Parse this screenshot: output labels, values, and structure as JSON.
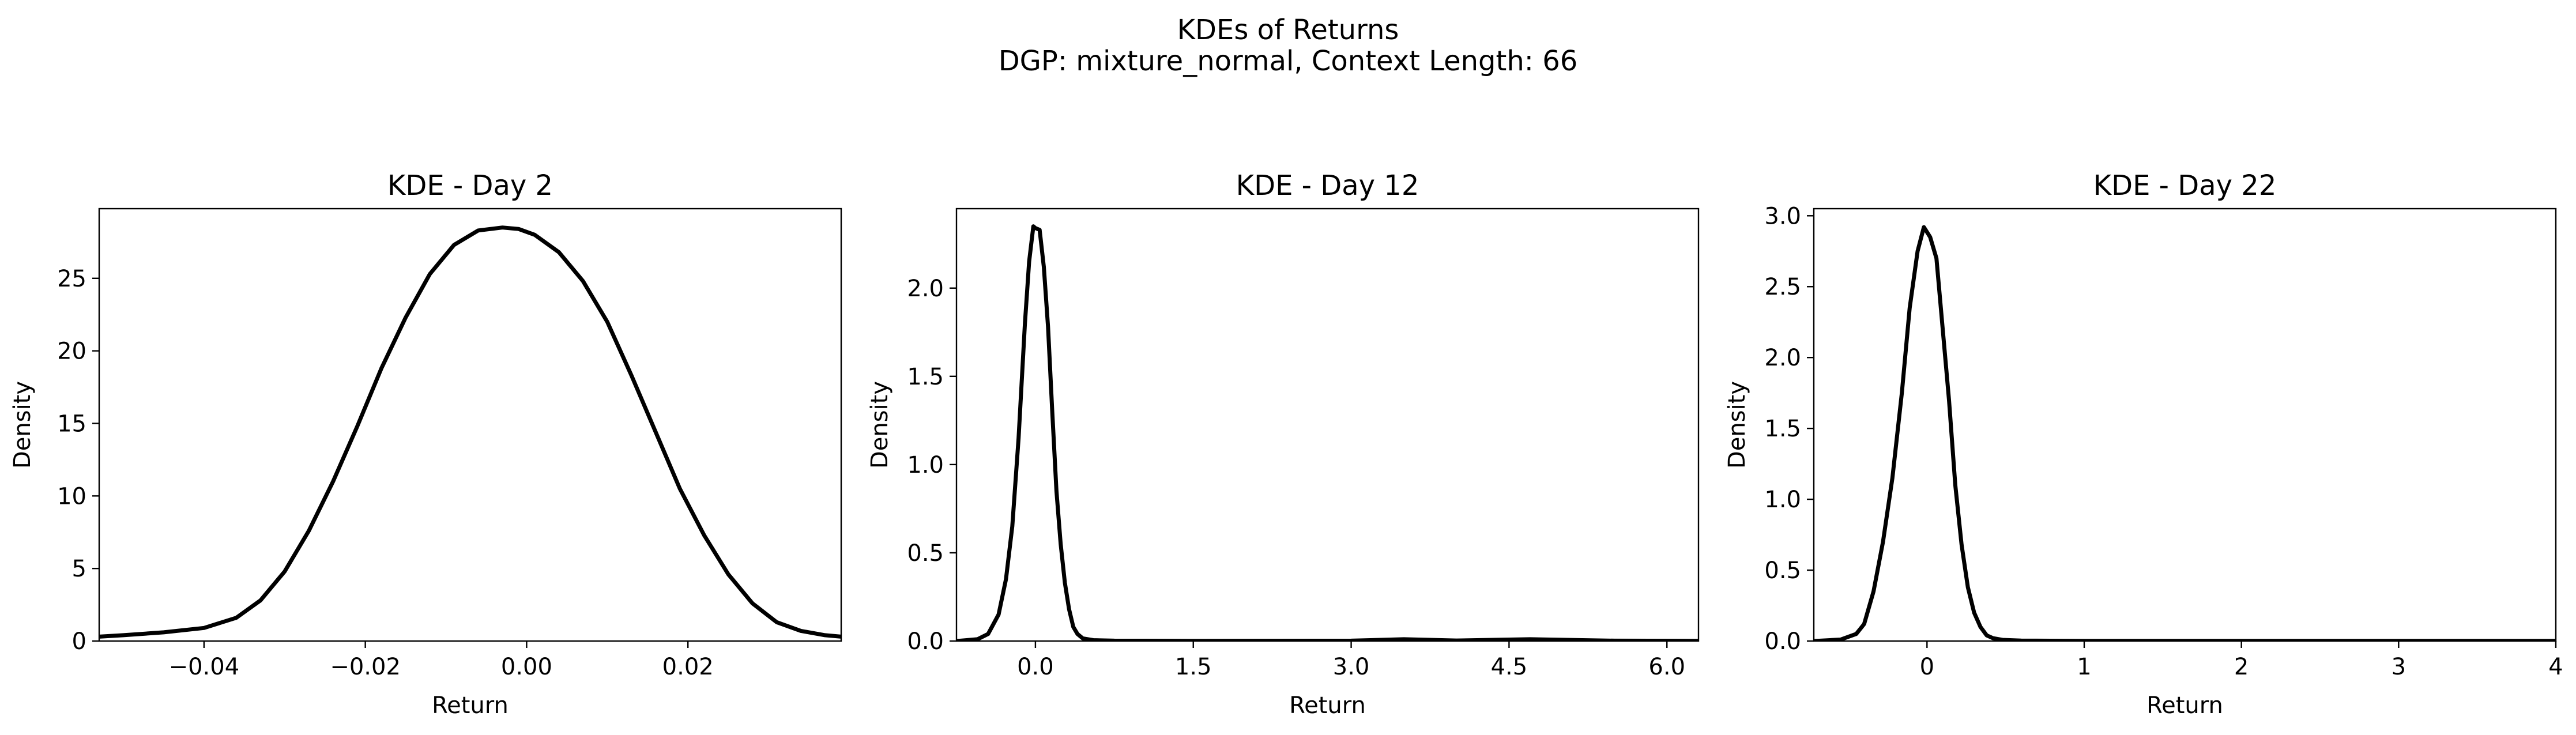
{
  "figure": {
    "title": "KDEs of Returns",
    "subtitle": "DGP: mixture_normal, Context Length: 66"
  },
  "chart_data": [
    {
      "type": "line",
      "title": "KDE - Day 2",
      "xlabel": "Return",
      "ylabel": "Density",
      "xlim": [
        -0.053,
        0.039
      ],
      "ylim": [
        0,
        29.8
      ],
      "xticks": [
        -0.04,
        -0.02,
        0.0,
        0.02
      ],
      "xtick_labels": [
        "−0.04",
        "−0.02",
        "0.00",
        "0.02"
      ],
      "yticks": [
        0,
        5,
        10,
        15,
        20,
        25
      ],
      "ytick_labels": [
        "0",
        "5",
        "10",
        "15",
        "20",
        "25"
      ],
      "grid": false,
      "series": [
        {
          "color": "#000000",
          "x": [
            -0.053,
            -0.05,
            -0.045,
            -0.04,
            -0.036,
            -0.033,
            -0.03,
            -0.027,
            -0.024,
            -0.021,
            -0.018,
            -0.015,
            -0.012,
            -0.009,
            -0.006,
            -0.003,
            -0.001,
            0.001,
            0.004,
            0.007,
            0.01,
            0.013,
            0.016,
            0.019,
            0.022,
            0.025,
            0.028,
            0.031,
            0.034,
            0.037,
            0.039
          ],
          "y": [
            0.3,
            0.4,
            0.6,
            0.9,
            1.6,
            2.8,
            4.8,
            7.6,
            11.0,
            14.8,
            18.8,
            22.3,
            25.3,
            27.3,
            28.3,
            28.5,
            28.4,
            28.0,
            26.8,
            24.8,
            22.0,
            18.3,
            14.4,
            10.5,
            7.3,
            4.6,
            2.6,
            1.3,
            0.7,
            0.4,
            0.3
          ]
        }
      ]
    },
    {
      "type": "line",
      "title": "KDE - Day 12",
      "xlabel": "Return",
      "ylabel": "Density",
      "xlim": [
        -0.75,
        6.3
      ],
      "ylim": [
        0,
        2.45
      ],
      "xticks": [
        0.0,
        1.5,
        3.0,
        4.5,
        6.0
      ],
      "xtick_labels": [
        "0.0",
        "1.5",
        "3.0",
        "4.5",
        "6.0"
      ],
      "yticks": [
        0.0,
        0.5,
        1.0,
        1.5,
        2.0
      ],
      "ytick_labels": [
        "0.0",
        "0.5",
        "1.0",
        "1.5",
        "2.0"
      ],
      "grid": false,
      "series": [
        {
          "color": "#000000",
          "x": [
            -0.75,
            -0.55,
            -0.45,
            -0.35,
            -0.28,
            -0.22,
            -0.16,
            -0.1,
            -0.06,
            -0.02,
            0.0,
            0.04,
            0.08,
            0.12,
            0.16,
            0.2,
            0.24,
            0.28,
            0.32,
            0.36,
            0.4,
            0.45,
            0.55,
            0.75,
            1.5,
            3.0,
            3.5,
            4.0,
            4.7,
            5.5,
            6.3
          ],
          "y": [
            0.0,
            0.01,
            0.04,
            0.15,
            0.35,
            0.65,
            1.15,
            1.8,
            2.15,
            2.35,
            2.34,
            2.33,
            2.12,
            1.78,
            1.3,
            0.85,
            0.55,
            0.33,
            0.18,
            0.08,
            0.04,
            0.015,
            0.005,
            0.002,
            0.001,
            0.002,
            0.01,
            0.003,
            0.01,
            0.002,
            0.001
          ]
        }
      ]
    },
    {
      "type": "line",
      "title": "KDE - Day 22",
      "xlabel": "Return",
      "ylabel": "Density",
      "xlim": [
        -0.72,
        4.0
      ],
      "ylim": [
        0,
        3.05
      ],
      "xticks": [
        0,
        1,
        2,
        3,
        4
      ],
      "xtick_labels": [
        "0",
        "1",
        "2",
        "3",
        "4"
      ],
      "yticks": [
        0.0,
        0.5,
        1.0,
        1.5,
        2.0,
        2.5,
        3.0
      ],
      "ytick_labels": [
        "0.0",
        "0.5",
        "1.0",
        "1.5",
        "2.0",
        "2.5",
        "3.0"
      ],
      "grid": false,
      "series": [
        {
          "color": "#000000",
          "x": [
            -0.72,
            -0.55,
            -0.45,
            -0.4,
            -0.34,
            -0.28,
            -0.22,
            -0.16,
            -0.11,
            -0.06,
            -0.02,
            0.02,
            0.06,
            0.1,
            0.14,
            0.18,
            0.22,
            0.26,
            0.3,
            0.34,
            0.38,
            0.42,
            0.48,
            0.6,
            1.0,
            2.0,
            3.0,
            4.0
          ],
          "y": [
            0.0,
            0.01,
            0.05,
            0.12,
            0.35,
            0.7,
            1.15,
            1.75,
            2.35,
            2.75,
            2.92,
            2.85,
            2.7,
            2.2,
            1.7,
            1.1,
            0.68,
            0.38,
            0.2,
            0.1,
            0.04,
            0.02,
            0.008,
            0.003,
            0.001,
            0.001,
            0.001,
            0.001
          ]
        }
      ]
    }
  ]
}
